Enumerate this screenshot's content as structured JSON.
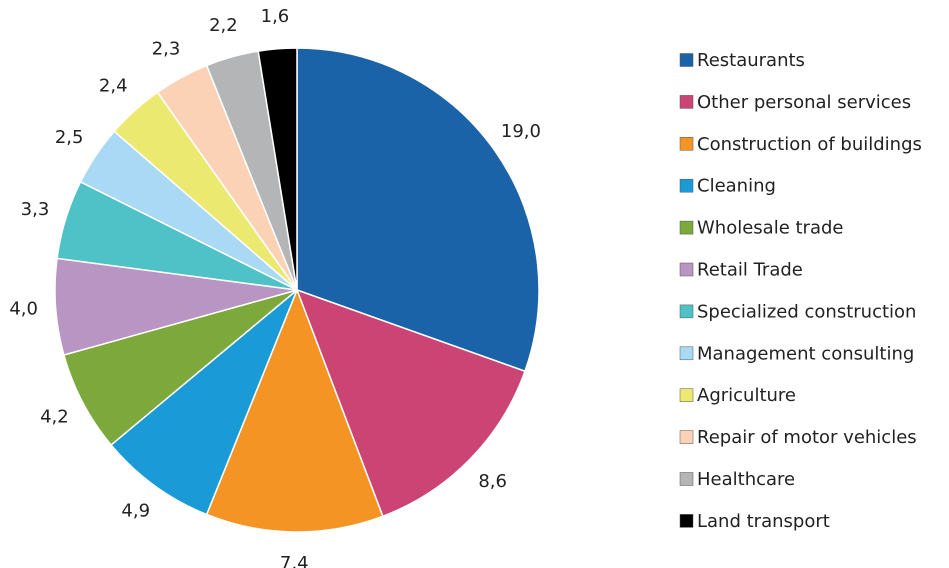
{
  "chart_data": {
    "type": "pie",
    "categories": [
      "Restaurants",
      "Other personal services",
      "Construction of buildings",
      "Cleaning",
      "Wholesale trade",
      "Retail Trade",
      "Specialized construction",
      "Management consulting",
      "Agriculture",
      "Repair of motor vehicles",
      "Healthcare",
      "Land transport"
    ],
    "values": [
      19.0,
      8.6,
      7.4,
      4.9,
      4.2,
      4.0,
      3.3,
      2.5,
      2.4,
      2.3,
      2.2,
      1.6
    ],
    "value_labels": [
      "19,0",
      "8,6",
      "7,4",
      "4,9",
      "4,2",
      "4,0",
      "3,3",
      "2,5",
      "2,4",
      "2,3",
      "2,2",
      "1,6"
    ],
    "colors": [
      "#1b63a8",
      "#cc4474",
      "#f39424",
      "#1a9bd7",
      "#7da83c",
      "#b895c2",
      "#4fc2c8",
      "#a9d9f5",
      "#ece970",
      "#fbd2b6",
      "#b3b5b6",
      "#000000"
    ],
    "legend": "right"
  }
}
